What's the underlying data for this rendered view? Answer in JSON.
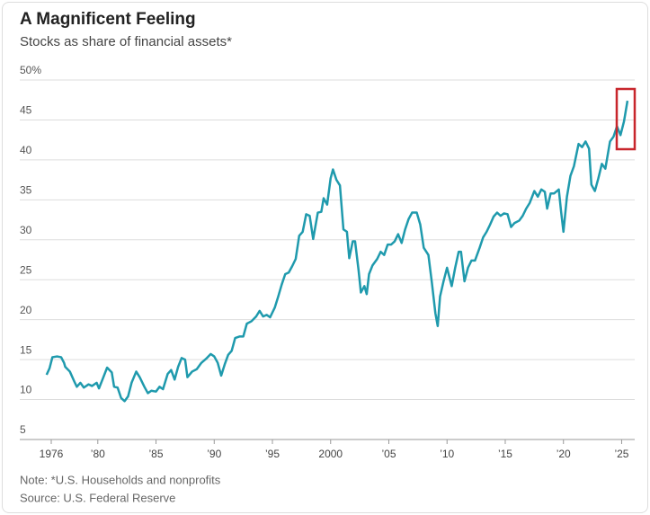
{
  "chart_data": {
    "type": "line",
    "title": "A Magnificent Feeling",
    "subtitle": "Stocks as share of financial assets*",
    "note": "Note: *U.S. Households and nonprofits",
    "source": "Source: U.S. Federal Reserve",
    "x": [
      1975.6,
      1975.85,
      1976.1,
      1976.5,
      1976.85,
      1977.1,
      1977.2,
      1977.6,
      1978.0,
      1978.2,
      1978.5,
      1978.8,
      1979.2,
      1979.5,
      1979.9,
      1980.1,
      1980.4,
      1980.8,
      1981.2,
      1981.4,
      1981.7,
      1982.0,
      1982.3,
      1982.6,
      1982.9,
      1983.3,
      1983.6,
      1984.0,
      1984.3,
      1984.6,
      1985.0,
      1985.3,
      1985.6,
      1986.0,
      1986.3,
      1986.6,
      1986.9,
      1987.2,
      1987.5,
      1987.7,
      1988.1,
      1988.5,
      1988.9,
      1989.3,
      1989.7,
      1990.0,
      1990.3,
      1990.6,
      1990.9,
      1991.2,
      1991.5,
      1991.8,
      1992.2,
      1992.5,
      1992.8,
      1993.2,
      1993.6,
      1993.9,
      1994.2,
      1994.5,
      1994.8,
      1995.2,
      1995.5,
      1995.8,
      1996.1,
      1996.4,
      1996.7,
      1997.0,
      1997.3,
      1997.6,
      1997.9,
      1998.2,
      1998.5,
      1998.9,
      1999.2,
      1999.4,
      1999.7,
      2000.0,
      2000.2,
      2000.5,
      2000.8,
      2001.1,
      2001.4,
      2001.6,
      2001.9,
      2002.1,
      2002.4,
      2002.6,
      2002.9,
      2003.1,
      2003.3,
      2003.6,
      2004.0,
      2004.3,
      2004.6,
      2004.9,
      2005.2,
      2005.5,
      2005.8,
      2006.1,
      2006.4,
      2006.7,
      2007.0,
      2007.4,
      2007.7,
      2008.0,
      2008.4,
      2008.7,
      2009.0,
      2009.2,
      2009.4,
      2009.7,
      2010.0,
      2010.4,
      2010.7,
      2011.0,
      2011.2,
      2011.5,
      2011.8,
      2012.1,
      2012.4,
      2012.8,
      2013.1,
      2013.4,
      2013.7,
      2014.0,
      2014.3,
      2014.6,
      2014.9,
      2015.2,
      2015.5,
      2015.8,
      2016.2,
      2016.5,
      2016.8,
      2017.1,
      2017.5,
      2017.8,
      2018.1,
      2018.4,
      2018.6,
      2018.9,
      2019.2,
      2019.6,
      2019.8,
      2020.0,
      2020.3,
      2020.6,
      2020.9,
      2021.3,
      2021.6,
      2021.9,
      2022.2,
      2022.4,
      2022.7,
      2023.0,
      2023.3,
      2023.6,
      2024.0,
      2024.3,
      2024.6,
      2024.9,
      2025.2,
      2025.5
    ],
    "series": [
      {
        "color": "#1f9aad",
        "values": [
          13.1,
          13.9,
          15.3,
          15.4,
          15.3,
          14.6,
          14.1,
          13.5,
          12.2,
          11.6,
          12.1,
          11.5,
          11.9,
          11.7,
          12.1,
          11.4,
          12.5,
          14.0,
          13.4,
          11.6,
          11.5,
          10.2,
          9.8,
          10.4,
          12.1,
          13.5,
          12.8,
          11.6,
          10.8,
          11.1,
          11.0,
          11.6,
          11.3,
          13.2,
          13.7,
          12.5,
          14.1,
          15.2,
          15.0,
          12.8,
          13.5,
          13.8,
          14.6,
          15.1,
          15.7,
          15.4,
          14.6,
          13.0,
          14.4,
          15.6,
          16.1,
          17.7,
          17.9,
          17.9,
          19.5,
          19.8,
          20.4,
          21.1,
          20.4,
          20.6,
          20.3,
          21.5,
          22.9,
          24.4,
          25.7,
          25.9,
          26.7,
          27.6,
          30.5,
          31.0,
          33.2,
          33.0,
          30.1,
          33.4,
          33.5,
          35.2,
          34.4,
          37.7,
          38.8,
          37.5,
          36.8,
          31.3,
          31.0,
          27.7,
          29.8,
          29.8,
          26.2,
          23.4,
          24.2,
          23.2,
          25.7,
          26.8,
          27.6,
          28.5,
          28.1,
          29.4,
          29.4,
          29.8,
          30.7,
          29.6,
          31.3,
          32.6,
          33.4,
          33.4,
          31.9,
          29.0,
          28.1,
          24.6,
          20.8,
          19.2,
          22.9,
          24.8,
          26.5,
          24.2,
          26.5,
          28.5,
          28.5,
          24.8,
          26.5,
          27.4,
          27.4,
          29.0,
          30.3,
          31.0,
          31.9,
          32.9,
          33.4,
          33.0,
          33.3,
          33.2,
          31.6,
          32.1,
          32.4,
          33.0,
          33.9,
          34.6,
          36.1,
          35.4,
          36.3,
          36.0,
          33.9,
          35.8,
          35.8,
          36.3,
          33.5,
          31.0,
          35.4,
          38.0,
          39.2,
          42.0,
          41.6,
          42.3,
          41.4,
          36.9,
          36.1,
          37.7,
          39.5,
          38.9,
          42.3,
          42.9,
          44.2,
          43.1,
          44.8,
          47.4
        ]
      }
    ],
    "xlim": [
      1975,
      2026.2
    ],
    "xticks": [
      1976,
      {
        "value": 1980,
        "label": "’80"
      },
      {
        "value": 1985,
        "label": "’85"
      },
      {
        "value": 1990,
        "label": "’90"
      },
      {
        "value": 1995,
        "label": "’95"
      },
      2000,
      {
        "value": 2005,
        "label": "’05"
      },
      {
        "value": 2010,
        "label": "’10"
      },
      {
        "value": 2015,
        "label": "’15"
      },
      {
        "value": 2020,
        "label": "’20"
      },
      {
        "value": 2025,
        "label": "’25"
      }
    ],
    "ylim": [
      5,
      50
    ],
    "yticks": [
      5,
      10,
      15,
      20,
      25,
      30,
      35,
      40,
      45,
      {
        "value": 50,
        "label": "50%"
      }
    ],
    "grid": true
  }
}
